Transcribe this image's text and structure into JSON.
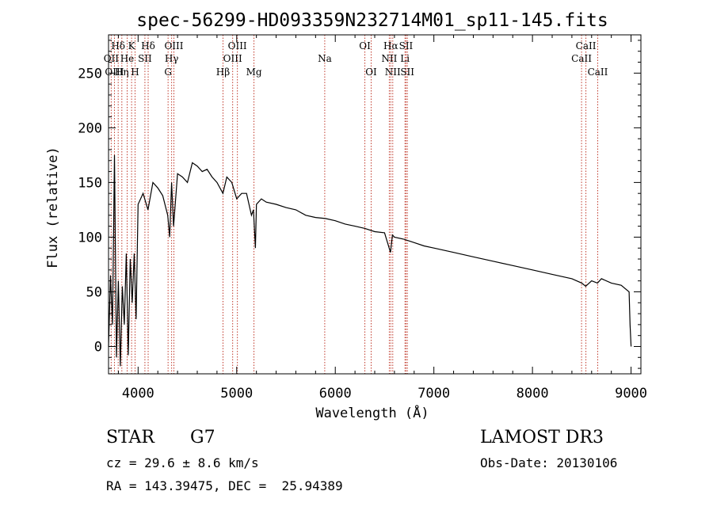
{
  "chart_data": {
    "type": "line",
    "title": "spec-56299-HD093359N232714M01_sp11-145.fits",
    "xlabel": "Wavelength (Å)",
    "ylabel": "Flux (relative)",
    "xlim": [
      3700,
      9100
    ],
    "ylim": [
      -25,
      285
    ],
    "xticks": [
      4000,
      5000,
      6000,
      7000,
      8000,
      9000
    ],
    "yticks": [
      0,
      50,
      100,
      150,
      200,
      250
    ],
    "grid": false,
    "series": [
      {
        "x": [
          3700,
          3720,
          3740,
          3760,
          3780,
          3800,
          3820,
          3840,
          3860,
          3880,
          3900,
          3920,
          3940,
          3960,
          3980,
          4000,
          4050,
          4100,
          4150,
          4200,
          4250,
          4300,
          4320,
          4340,
          4360,
          4400,
          4450,
          4500,
          4550,
          4600,
          4650,
          4700,
          4750,
          4800,
          4860,
          4900,
          4950,
          5000,
          5050,
          5100,
          5150,
          5170,
          5190,
          5200,
          5250,
          5300,
          5400,
          5500,
          5600,
          5700,
          5800,
          5900,
          6000,
          6100,
          6200,
          6300,
          6400,
          6500,
          6560,
          6580,
          6600,
          6700,
          6800,
          6900,
          7000,
          7200,
          7400,
          7600,
          7800,
          8000,
          8200,
          8400,
          8500,
          8540,
          8600,
          8660,
          8700,
          8800,
          8900,
          8980,
          8990,
          9000
        ],
        "y": [
          0,
          65,
          20,
          175,
          -10,
          60,
          -18,
          55,
          20,
          85,
          -8,
          80,
          40,
          85,
          25,
          130,
          140,
          125,
          150,
          145,
          138,
          120,
          100,
          150,
          110,
          158,
          155,
          150,
          168,
          165,
          160,
          162,
          155,
          150,
          140,
          155,
          150,
          135,
          140,
          140,
          120,
          125,
          90,
          130,
          135,
          132,
          130,
          127,
          125,
          120,
          118,
          117,
          115,
          112,
          110,
          108,
          105,
          104,
          86,
          102,
          100,
          98,
          95,
          92,
          90,
          86,
          82,
          78,
          74,
          70,
          66,
          62,
          58,
          55,
          60,
          58,
          62,
          58,
          56,
          50,
          20,
          0
        ]
      }
    ],
    "lines": [
      {
        "label": "Hδ",
        "x": 3798,
        "row": 1
      },
      {
        "label": "OII",
        "x": 3727,
        "row": 2
      },
      {
        "label": "OIII",
        "x": 3760,
        "row": 3
      },
      {
        "label": "K",
        "x": 3934,
        "row": 1
      },
      {
        "label": "He",
        "x": 3889,
        "row": 2
      },
      {
        "label": "Hη",
        "x": 3835,
        "row": 3
      },
      {
        "label": "H",
        "x": 3969,
        "row": 3
      },
      {
        "label": "Hδ",
        "x": 4102,
        "row": 1
      },
      {
        "label": "SII",
        "x": 4069,
        "row": 2
      },
      {
        "label": "OIII",
        "x": 4363,
        "row": 1
      },
      {
        "label": "Hγ",
        "x": 4340,
        "row": 2
      },
      {
        "label": "G",
        "x": 4304,
        "row": 3
      },
      {
        "label": "Hβ",
        "x": 4861,
        "row": 3
      },
      {
        "label": "OIII",
        "x": 5007,
        "row": 1
      },
      {
        "label": "OIII",
        "x": 4959,
        "row": 2
      },
      {
        "label": "Mg",
        "x": 5175,
        "row": 3
      },
      {
        "label": "Na",
        "x": 5893,
        "row": 2
      },
      {
        "label": "OI",
        "x": 6300,
        "row": 1
      },
      {
        "label": "OI",
        "x": 6364,
        "row": 3
      },
      {
        "label": "Hα",
        "x": 6563,
        "row": 1
      },
      {
        "label": "NII",
        "x": 6548,
        "row": 2
      },
      {
        "label": "NII",
        "x": 6583,
        "row": 3
      },
      {
        "label": "SII",
        "x": 6717,
        "row": 1
      },
      {
        "label": "Li",
        "x": 6707,
        "row": 2
      },
      {
        "label": "SII",
        "x": 6731,
        "row": 3
      },
      {
        "label": "CaII",
        "x": 8542,
        "row": 1
      },
      {
        "label": "CaII",
        "x": 8498,
        "row": 2
      },
      {
        "label": "CaII",
        "x": 8662,
        "row": 3
      }
    ]
  },
  "info": {
    "class": "STAR",
    "subclass": "G7",
    "survey": "LAMOST DR3",
    "cz": "cz = 29.6 ± 8.6 km/s",
    "obs_date": "Obs-Date: 20130106",
    "coords": "RA = 143.39475, DEC =  25.94389"
  }
}
